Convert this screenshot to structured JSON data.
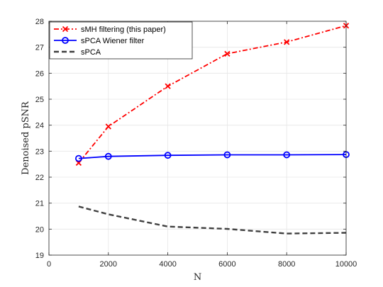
{
  "chart_data": {
    "type": "line",
    "xlabel": "N",
    "ylabel": "Denoised pSNR",
    "xlim": [
      0,
      10000
    ],
    "ylim": [
      19,
      28
    ],
    "xticks": [
      0,
      2000,
      4000,
      6000,
      8000,
      10000
    ],
    "yticks": [
      19,
      20,
      21,
      22,
      23,
      24,
      25,
      26,
      27,
      28
    ],
    "x": [
      1000,
      2000,
      4000,
      6000,
      8000,
      10000
    ],
    "grid": true,
    "legend_position": "top-left",
    "series": [
      {
        "name": "sMH filtering (this paper)",
        "values": [
          22.55,
          23.95,
          25.5,
          26.75,
          27.2,
          27.83
        ],
        "color": "#ff0000",
        "line_style": "dash-dot",
        "marker": "x"
      },
      {
        "name": "sPCA Wiener filter",
        "values": [
          22.72,
          22.8,
          22.84,
          22.86,
          22.86,
          22.87
        ],
        "color": "#0000ff",
        "line_style": "solid",
        "marker": "circle"
      },
      {
        "name": "sPCA",
        "values": [
          20.87,
          20.57,
          20.1,
          20.01,
          19.83,
          19.86
        ],
        "color": "#404040",
        "line_style": "dashed",
        "marker": "none"
      }
    ]
  }
}
